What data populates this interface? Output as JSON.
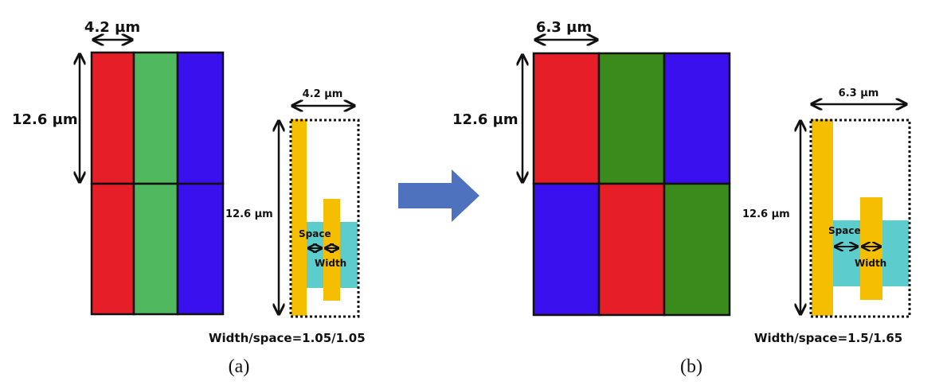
{
  "colors": {
    "red": "#e61e28",
    "green_a": "#50b85e",
    "green_b": "#3a8a1c",
    "blue": "#3a10ee",
    "yellow": "#f5bf00",
    "cyan": "#5ccccc",
    "arrow": "#4f72be"
  },
  "panel_a": {
    "pixel_width": "4.2 µm",
    "pixel_height": "12.6 µm",
    "inset_width": "4.2 µm",
    "inset_height": "12.6 µm",
    "space_label": "Space",
    "width_label": "Width",
    "ratio": "Width/space=1.05/1.05",
    "caption": "(a)"
  },
  "panel_b": {
    "pixel_width": "6.3 µm",
    "pixel_height": "12.6 µm",
    "inset_width": "6.3 µm",
    "inset_height": "12.6 µm",
    "space_label": "Space",
    "width_label": "Width",
    "ratio": "Width/space=1.5/1.65",
    "caption": "(b)"
  }
}
